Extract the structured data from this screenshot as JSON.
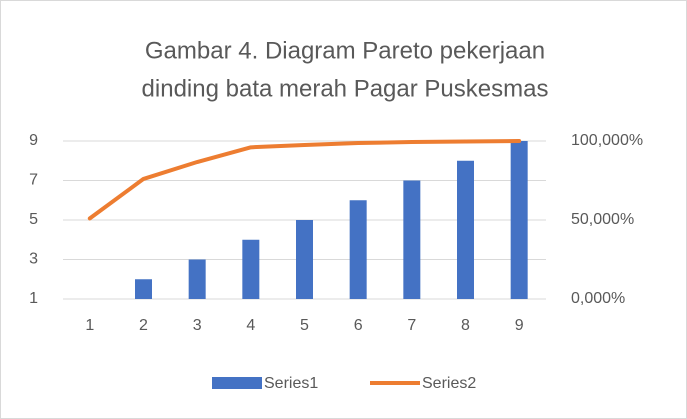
{
  "chart_data": {
    "type": "pareto",
    "title": [
      "Gambar 4. Diagram Pareto pekerjaan",
      "dinding bata merah Pagar Puskesmas"
    ],
    "categories": [
      "1",
      "2",
      "3",
      "4",
      "5",
      "6",
      "7",
      "8",
      "9"
    ],
    "series": [
      {
        "name": "Series1",
        "color": "#4472c4",
        "type": "bar",
        "values": [
          1,
          2,
          3,
          4,
          5,
          6,
          7,
          8,
          9
        ]
      },
      {
        "name": "Series2",
        "color": "#ed7d31",
        "type": "line",
        "axis": "y2",
        "values": [
          51,
          76,
          86.7,
          96,
          97.5,
          98.7,
          99.4,
          99.7,
          100
        ]
      }
    ],
    "ylim": [
      1,
      9
    ],
    "yticks": [
      1,
      3,
      5,
      7,
      9
    ],
    "y2lim": [
      0,
      100
    ],
    "y2ticks": [
      {
        "value": 0,
        "label": "0,000%"
      },
      {
        "value": 50,
        "label": "50,000%"
      },
      {
        "value": 100,
        "label": "100,000%"
      }
    ],
    "grid": true,
    "legend": "bottom"
  }
}
